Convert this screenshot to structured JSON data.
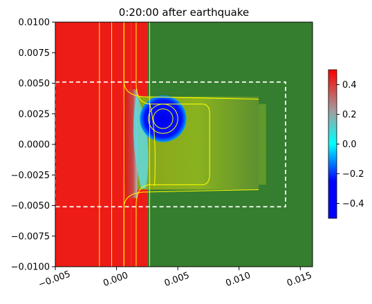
{
  "chart_data": {
    "type": "heatmap",
    "title": "0:20:00 after earthquake",
    "xlabel": "",
    "ylabel": "",
    "xlim": [
      -0.005,
      0.016
    ],
    "ylim": [
      -0.01,
      0.01
    ],
    "x_ticks": [
      -0.005,
      0.0,
      0.005,
      0.01,
      0.015
    ],
    "x_tick_labels": [
      "−0.005",
      "0.000",
      "0.005",
      "0.010",
      "0.015"
    ],
    "y_ticks": [
      0.01,
      0.0075,
      0.005,
      0.0025,
      0.0,
      -0.0025,
      -0.005,
      -0.0075,
      -0.01
    ],
    "y_tick_labels": [
      "0.0100",
      "0.0075",
      "0.0050",
      "0.0025",
      "0.0000",
      "−0.0025",
      "−0.0050",
      "−0.0075",
      "−0.0100"
    ],
    "x_tick_rotation_deg": 20,
    "grid": false,
    "colorbar": {
      "range": [
        -0.5,
        0.5
      ],
      "ticks": [
        0.4,
        0.2,
        0.0,
        -0.2,
        -0.4
      ],
      "tick_labels": [
        "0.4",
        "0.2",
        "0.0",
        "−0.2",
        "−0.4"
      ],
      "colormap_stops": [
        {
          "value": 0.5,
          "color": "#ff0000"
        },
        {
          "value": 0.22,
          "color": "#a0a0a0"
        },
        {
          "value": 0.0,
          "color": "#00ffff"
        },
        {
          "value": -0.25,
          "color": "#0000ff"
        },
        {
          "value": -0.5,
          "color": "#0000ff"
        }
      ]
    },
    "regions": {
      "left_high_color": "#ee1c16",
      "right_color": "#357d2f",
      "mid_zone_color": "#8fb21f",
      "mound_color": "#0000ee",
      "contour_color": "#ffff00",
      "box_color": "#ffffff"
    },
    "dashed_box": {
      "x": [
        -0.005,
        0.0138
      ],
      "y": [
        -0.0051,
        0.0051
      ]
    },
    "mound_center": [
      0.0038,
      0.0021
    ],
    "mound_radius": 0.0019,
    "contour_rings": [
      0.0012,
      0.0008
    ]
  }
}
